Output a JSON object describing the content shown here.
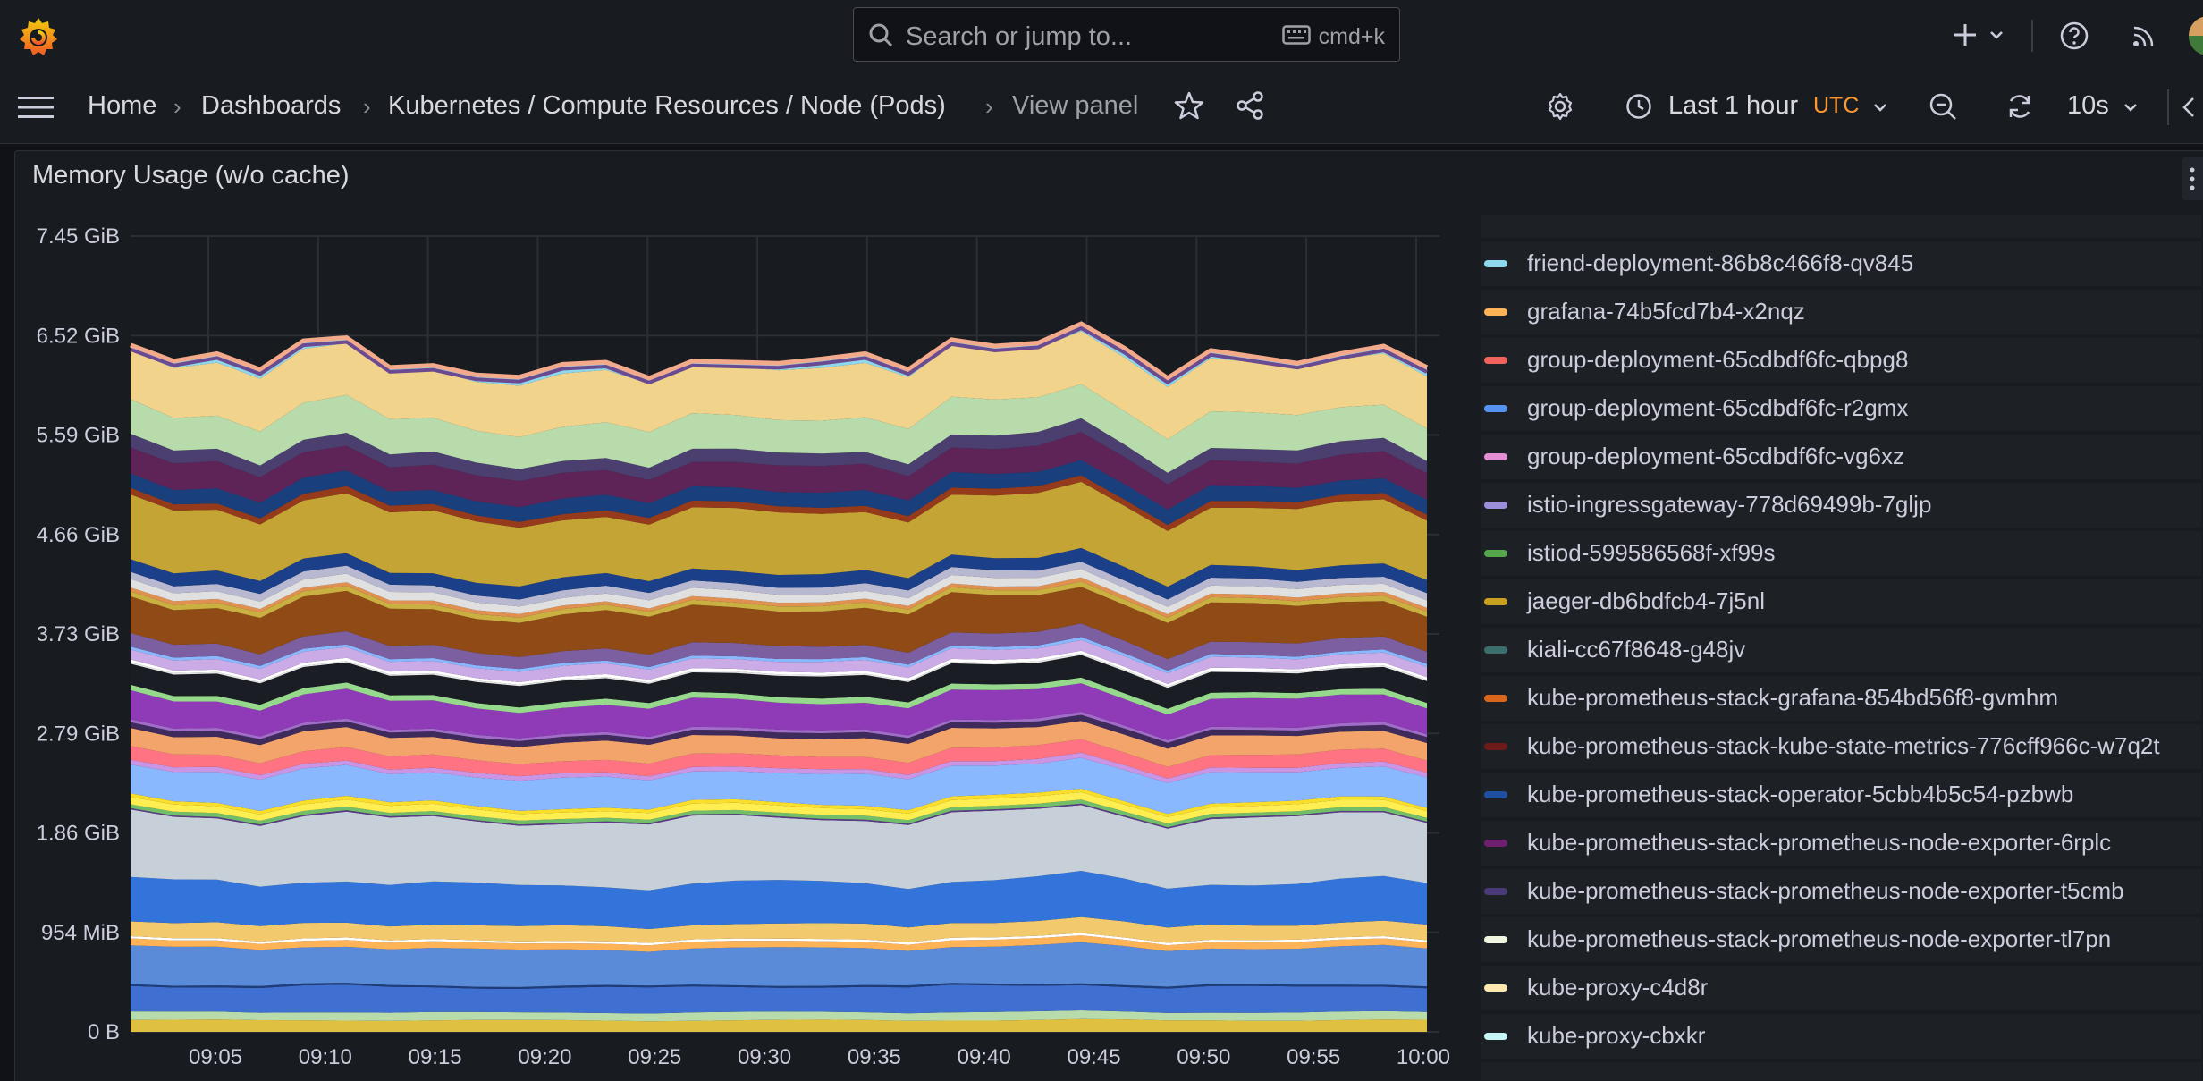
{
  "colors": {
    "bg": "#111217",
    "panel": "#181b1f",
    "accent_orange": "#f05a28",
    "utc": "#ff9830"
  },
  "topbar": {
    "logo_icon": "grafana-logo-icon",
    "search_placeholder": "Search or jump to...",
    "search_shortcut": "cmd+k",
    "icons": [
      "plus-icon",
      "chevron-down-icon",
      "help-icon",
      "rss-icon",
      "avatar"
    ]
  },
  "nav": {
    "breadcrumbs": [
      "Home",
      "Dashboards",
      "Kubernetes / Compute Resources / Node (Pods)",
      "View panel"
    ],
    "time_range": "Last 1 hour",
    "timezone": "UTC",
    "refresh_interval": "10s"
  },
  "panel": {
    "title": "Memory Usage (w/o cache)"
  },
  "chart_data": {
    "type": "area",
    "stacked": true,
    "title": "Memory Usage (w/o cache)",
    "xlabel": "",
    "ylabel": "",
    "x_ticks": [
      "09:05",
      "09:10",
      "09:15",
      "09:20",
      "09:25",
      "09:30",
      "09:35",
      "09:40",
      "09:45",
      "09:50",
      "09:55",
      "10:00"
    ],
    "y_ticks": [
      "0 B",
      "954 MiB",
      "1.86 GiB",
      "2.79 GiB",
      "3.73 GiB",
      "4.66 GiB",
      "5.59 GiB",
      "6.52 GiB",
      "7.45 GiB"
    ],
    "ylim_gib": [
      0,
      7.45
    ],
    "total_gib": [
      6.43,
      6.28,
      6.35,
      6.2,
      6.47,
      6.5,
      6.22,
      6.24,
      6.15,
      6.13,
      6.25,
      6.27,
      6.12,
      6.28,
      6.27,
      6.26,
      6.3,
      6.35,
      6.2,
      6.48,
      6.42,
      6.45,
      6.63,
      6.4,
      6.12,
      6.38,
      6.32,
      6.26,
      6.35,
      6.42,
      6.22
    ],
    "band_fractions_gib": [
      0.05,
      0.035,
      0.11,
      0.008,
      0.16,
      0.028,
      0.01,
      0.065,
      0.18,
      0.28,
      0.006,
      0.016,
      0.03,
      0.015,
      0.13,
      0.02,
      0.055,
      0.08,
      0.025,
      0.012,
      0.12,
      0.025,
      0.09,
      0.006,
      0.012,
      0.045,
      0.012,
      0.055,
      0.16,
      0.022,
      0.016,
      0.035,
      0.032,
      0.055,
      0.26,
      0.028,
      0.065,
      0.11,
      0.055,
      0.15,
      0.22,
      0.03
    ],
    "band_colors": [
      "#e0c040",
      "#b7dbab",
      "#3f6fd0",
      "#1f3d7a",
      "#5a8bd9",
      "#ffb357",
      "#ffffff",
      "#f2c96d",
      "#3274d9",
      "#c7d0d9",
      "#5b3a8a",
      "#73bf69",
      "#ffee52",
      "#fade2a",
      "#8ab8ff",
      "#ca95e5",
      "#ff7383",
      "#f2a46a",
      "#3f2b5b",
      "#a16dc9",
      "#8f3bb8",
      "#96d98d",
      "#1a1d23",
      "#e8e8e8",
      "#ffffff",
      "#caabe6",
      "#8ab8ff",
      "#7b5fa0",
      "#8f4a16",
      "#c9b040",
      "#e09050",
      "#e0e0e0",
      "#b8b8d0",
      "#1c3f8a",
      "#c4a434",
      "#963a1c",
      "#1a3f7d",
      "#5e2458",
      "#4a3f6e",
      "#b7dbab",
      "#f2d38c",
      "#8ed8ed",
      "#a59ed8",
      "#5a9950",
      "#e0b23c",
      "#64a8bf",
      "#d97a3a",
      "#6a4a90",
      "#f2aa8a"
    ],
    "series": [
      {
        "name": "friend-deployment-86b8c466f8-qv845",
        "color": "#8ed8ed"
      },
      {
        "name": "grafana-74b5fcd7b4-x2nqz",
        "color": "#ffb357"
      },
      {
        "name": "group-deployment-65cdbdf6fc-qbpg8",
        "color": "#f2635c"
      },
      {
        "name": "group-deployment-65cdbdf6fc-r2gmx",
        "color": "#5794f2"
      },
      {
        "name": "group-deployment-65cdbdf6fc-vg6xz",
        "color": "#e48fd3"
      },
      {
        "name": "istio-ingressgateway-778d69499b-7gljp",
        "color": "#9c8fd9"
      },
      {
        "name": "istiod-599586568f-xf99s",
        "color": "#56a64b"
      },
      {
        "name": "jaeger-db6bdfcb4-7j5nl",
        "color": "#c9a020"
      },
      {
        "name": "kiali-cc67f8648-g48jv",
        "color": "#3d6e6e"
      },
      {
        "name": "kube-prometheus-stack-grafana-854bd56f8-gvmhm",
        "color": "#d9661a"
      },
      {
        "name": "kube-prometheus-stack-kube-state-metrics-776cff966c-w7q2t",
        "color": "#6e1a1a"
      },
      {
        "name": "kube-prometheus-stack-operator-5cbb4b5c54-pzbwb",
        "color": "#1f4fa0"
      },
      {
        "name": "kube-prometheus-stack-prometheus-node-exporter-6rplc",
        "color": "#6e1f6e"
      },
      {
        "name": "kube-prometheus-stack-prometheus-node-exporter-t5cmb",
        "color": "#4a3a78"
      },
      {
        "name": "kube-prometheus-stack-prometheus-node-exporter-tl7pn",
        "color": "#f0f5e0"
      },
      {
        "name": "kube-proxy-c4d8r",
        "color": "#ffe8b0"
      },
      {
        "name": "kube-proxy-cbxkr",
        "color": "#c8f5f5"
      }
    ]
  }
}
